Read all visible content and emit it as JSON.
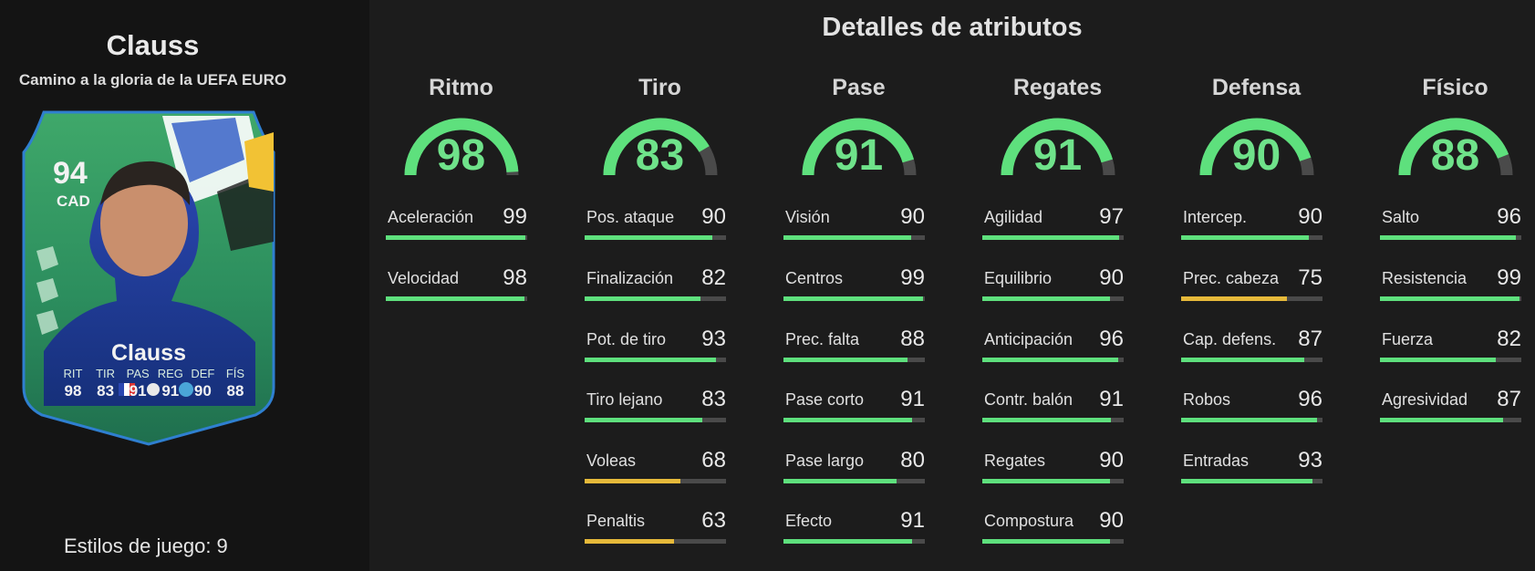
{
  "player": {
    "name": "Clauss",
    "subtitle": "Camino a la gloria de la UEFA EURO",
    "play_styles": "Estilos de juego: 9"
  },
  "card": {
    "rating": "94",
    "position": "CAD",
    "name": "Clauss",
    "stats": [
      {
        "label": "RIT",
        "value": "98"
      },
      {
        "label": "TIR",
        "value": "83"
      },
      {
        "label": "PAS",
        "value": "91"
      },
      {
        "label": "REG",
        "value": "91"
      },
      {
        "label": "DEF",
        "value": "90"
      },
      {
        "label": "FÍS",
        "value": "88"
      }
    ]
  },
  "title": "Detalles de atributos",
  "colors": {
    "high": "#5ee07d",
    "mid": "#e6b93a",
    "track": "#4a4a4a"
  },
  "categories": [
    {
      "name": "Ritmo",
      "value": "98",
      "stats": [
        {
          "name": "Aceleración",
          "value": "99"
        },
        {
          "name": "Velocidad",
          "value": "98"
        }
      ]
    },
    {
      "name": "Tiro",
      "value": "83",
      "stats": [
        {
          "name": "Pos. ataque",
          "value": "90"
        },
        {
          "name": "Finalización",
          "value": "82"
        },
        {
          "name": "Pot. de tiro",
          "value": "93"
        },
        {
          "name": "Tiro lejano",
          "value": "83"
        },
        {
          "name": "Voleas",
          "value": "68"
        },
        {
          "name": "Penaltis",
          "value": "63"
        }
      ]
    },
    {
      "name": "Pase",
      "value": "91",
      "stats": [
        {
          "name": "Visión",
          "value": "90"
        },
        {
          "name": "Centros",
          "value": "99"
        },
        {
          "name": "Prec. falta",
          "value": "88"
        },
        {
          "name": "Pase corto",
          "value": "91"
        },
        {
          "name": "Pase largo",
          "value": "80"
        },
        {
          "name": "Efecto",
          "value": "91"
        }
      ]
    },
    {
      "name": "Regates",
      "value": "91",
      "stats": [
        {
          "name": "Agilidad",
          "value": "97"
        },
        {
          "name": "Equilibrio",
          "value": "90"
        },
        {
          "name": "Anticipación",
          "value": "96"
        },
        {
          "name": "Contr. balón",
          "value": "91"
        },
        {
          "name": "Regates",
          "value": "90"
        },
        {
          "name": "Compostura",
          "value": "90"
        }
      ]
    },
    {
      "name": "Defensa",
      "value": "90",
      "stats": [
        {
          "name": "Intercep.",
          "value": "90"
        },
        {
          "name": "Prec. cabeza",
          "value": "75"
        },
        {
          "name": "Cap. defens.",
          "value": "87"
        },
        {
          "name": "Robos",
          "value": "96"
        },
        {
          "name": "Entradas",
          "value": "93"
        }
      ]
    },
    {
      "name": "Físico",
      "value": "88",
      "stats": [
        {
          "name": "Salto",
          "value": "96"
        },
        {
          "name": "Resistencia",
          "value": "99"
        },
        {
          "name": "Fuerza",
          "value": "82"
        },
        {
          "name": "Agresividad",
          "value": "87"
        }
      ]
    }
  ]
}
